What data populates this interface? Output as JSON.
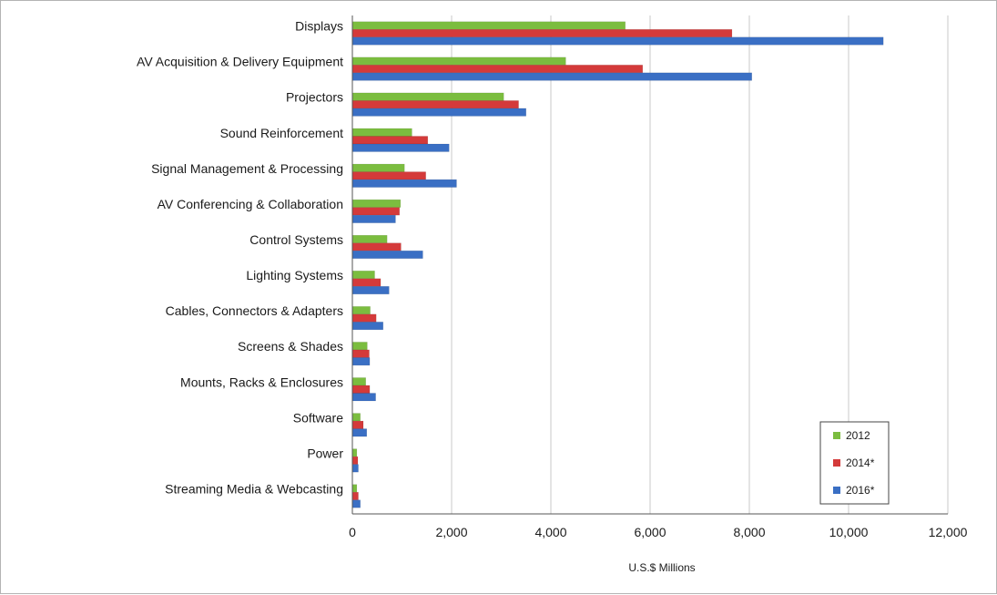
{
  "chart_data": {
    "type": "bar",
    "orientation": "horizontal",
    "categories": [
      "Displays",
      "AV Acquisition & Delivery Equipment",
      "Projectors",
      "Sound Reinforcement",
      "Signal Management & Processing",
      "AV Conferencing & Collaboration",
      "Control Systems",
      "Lighting Systems",
      "Cables, Connectors & Adapters",
      "Screens & Shades",
      "Mounts, Racks & Enclosures",
      "Software",
      "Power",
      "Streaming Media & Webcasting"
    ],
    "series": [
      {
        "name": "2012",
        "color": "#7bbd3f",
        "values": [
          5500,
          4300,
          3050,
          1200,
          1050,
          970,
          700,
          450,
          360,
          300,
          270,
          160,
          90,
          90
        ]
      },
      {
        "name": "2014*",
        "color": "#d43a3a",
        "values": [
          7650,
          5850,
          3350,
          1520,
          1480,
          950,
          980,
          570,
          480,
          340,
          350,
          220,
          110,
          120
        ]
      },
      {
        "name": "2016*",
        "color": "#3a6fc4",
        "values": [
          10700,
          8050,
          3500,
          1950,
          2100,
          870,
          1420,
          740,
          620,
          350,
          470,
          290,
          120,
          160
        ]
      }
    ],
    "xlabel": "U.S.$ Millions",
    "xlim": [
      0,
      12000
    ],
    "xticks": [
      0,
      2000,
      4000,
      6000,
      8000,
      10000,
      12000
    ],
    "xtick_labels": [
      "0",
      "2,000",
      "4,000",
      "6,000",
      "8,000",
      "10,000",
      "12,000"
    ],
    "grid": true,
    "legend": "bottom-right"
  }
}
